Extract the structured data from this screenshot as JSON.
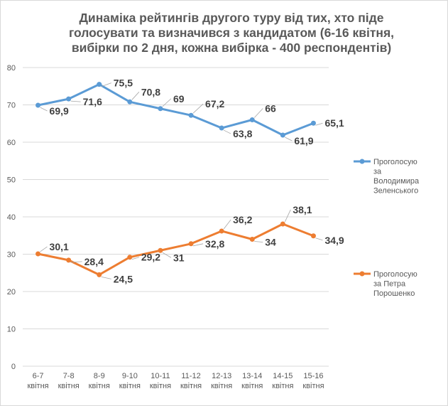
{
  "chart_data": {
    "type": "line",
    "title_lines": [
      "Динаміка рейтингів другого туру від тих, хто піде",
      "голосувати та визначився з кандидатом (6-16 квітня,",
      "вибірки по 2 дня, кожна вибірка - 400 респондентів)"
    ],
    "categories": [
      [
        "6-7",
        "квітня"
      ],
      [
        "7-8",
        "квітня"
      ],
      [
        "8-9",
        "квітня"
      ],
      [
        "9-10",
        "квітня"
      ],
      [
        "10-11",
        "квітня"
      ],
      [
        "11-12",
        "квітня"
      ],
      [
        "12-13",
        "квітня"
      ],
      [
        "13-14",
        "квітня"
      ],
      [
        "14-15",
        "квітня"
      ],
      [
        "15-16",
        "квітня"
      ]
    ],
    "ylim": [
      0,
      80
    ],
    "yticks": [
      0,
      10,
      20,
      30,
      40,
      50,
      60,
      70,
      80
    ],
    "grid": true,
    "legend_placement": "right",
    "series": [
      {
        "name_lines": [
          "Проголосую",
          "за",
          "Володимира",
          "Зеленського"
        ],
        "color": "#5b9bd5",
        "values": [
          69.9,
          71.6,
          75.5,
          70.8,
          69,
          67.2,
          63.8,
          66,
          61.9,
          65.1
        ],
        "labels": [
          "69,9",
          "71,6",
          "75,5",
          "70,8",
          "69",
          "67,2",
          "63,8",
          "66",
          "61,9",
          "65,1"
        ]
      },
      {
        "name_lines": [
          "Проголосую",
          "за Петра",
          "Порошенко"
        ],
        "color": "#ed7d31",
        "values": [
          30.1,
          28.4,
          24.5,
          29.2,
          31,
          32.8,
          36.2,
          34,
          38.1,
          34.9
        ],
        "labels": [
          "30,1",
          "28,4",
          "24,5",
          "29,2",
          "31",
          "32,8",
          "36,2",
          "34",
          "38,1",
          "34,9"
        ]
      }
    ]
  }
}
